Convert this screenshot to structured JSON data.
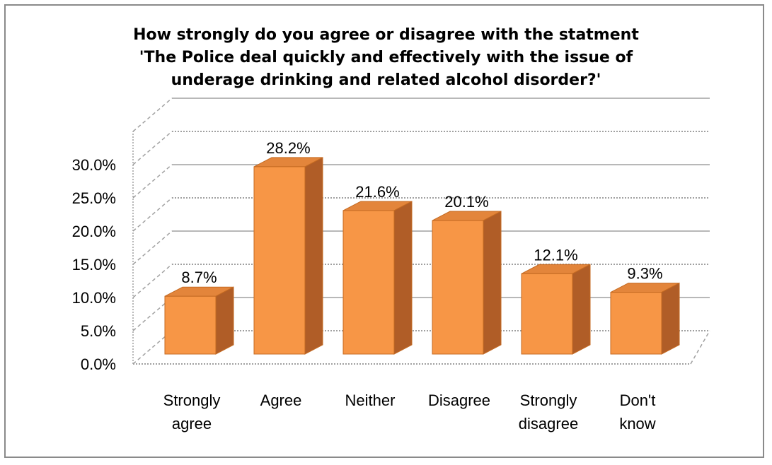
{
  "chart_data": {
    "type": "bar",
    "title_lines": [
      "How strongly do you agree or disagree with the statment",
      "'The Police deal quickly and effectively  with the issue of",
      "underage drinking and related alcohol disorder?'"
    ],
    "categories": [
      [
        "Strongly",
        "agree"
      ],
      [
        "Agree"
      ],
      [
        "Neither"
      ],
      [
        "Disagree"
      ],
      [
        "Strongly",
        "disagree"
      ],
      [
        "Don't",
        "know"
      ]
    ],
    "values": [
      8.7,
      28.2,
      21.6,
      20.1,
      12.1,
      9.3
    ],
    "data_labels": [
      "8.7%",
      "28.2%",
      "21.6%",
      "20.1%",
      "12.1%",
      "9.3%"
    ],
    "y_ticks": [
      "0.0%",
      "5.0%",
      "10.0%",
      "15.0%",
      "20.0%",
      "25.0%",
      "30.0%"
    ],
    "ylim": [
      0,
      30
    ],
    "grid": true,
    "legend": "none",
    "style": "3d-column",
    "colors": {
      "front": "#f79646",
      "top": "#e3853b",
      "side": "#b05d27",
      "edge": "#c46a22"
    }
  }
}
